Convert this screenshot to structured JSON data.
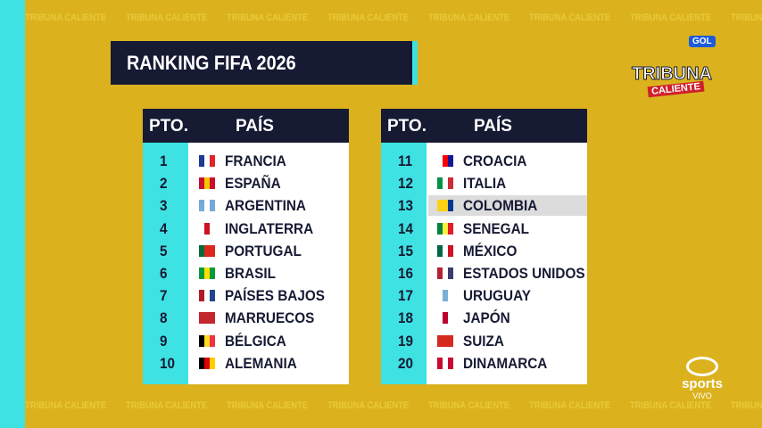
{
  "title": "RANKING FIFA 2026",
  "watermark": "TRIBUNA CALIENTE",
  "logo": {
    "channel": "GOL",
    "brand_top": "TRIBUNA",
    "brand_bottom": "CALIENTE",
    "network": "sports",
    "live": "VIVO"
  },
  "tables": [
    {
      "headers": [
        "PTO.",
        "PAÍS"
      ],
      "rows": [
        [
          1,
          "FRANCIA"
        ],
        [
          2,
          "ESPAÑA"
        ],
        [
          3,
          "ARGENTINA"
        ],
        [
          4,
          "INGLATERRA"
        ],
        [
          5,
          "PORTUGAL"
        ],
        [
          6,
          "BRASIL"
        ],
        [
          7,
          "PAÍSES BAJOS"
        ],
        [
          8,
          "MARRUECOS"
        ],
        [
          9,
          "BÉLGICA"
        ],
        [
          10,
          "ALEMANIA"
        ]
      ]
    },
    {
      "headers": [
        "PTO.",
        "PAÍS"
      ],
      "rows": [
        [
          11,
          "CROACIA"
        ],
        [
          12,
          "ITALIA"
        ],
        [
          13,
          "COLOMBIA"
        ],
        [
          14,
          "SENEGAL"
        ],
        [
          15,
          "MÉXICO"
        ],
        [
          16,
          "ESTADOS UNIDOS"
        ],
        [
          17,
          "URUGUAY"
        ],
        [
          18,
          "JAPÓN"
        ],
        [
          19,
          "SUIZA"
        ],
        [
          20,
          "DINAMARCA"
        ]
      ]
    }
  ]
}
